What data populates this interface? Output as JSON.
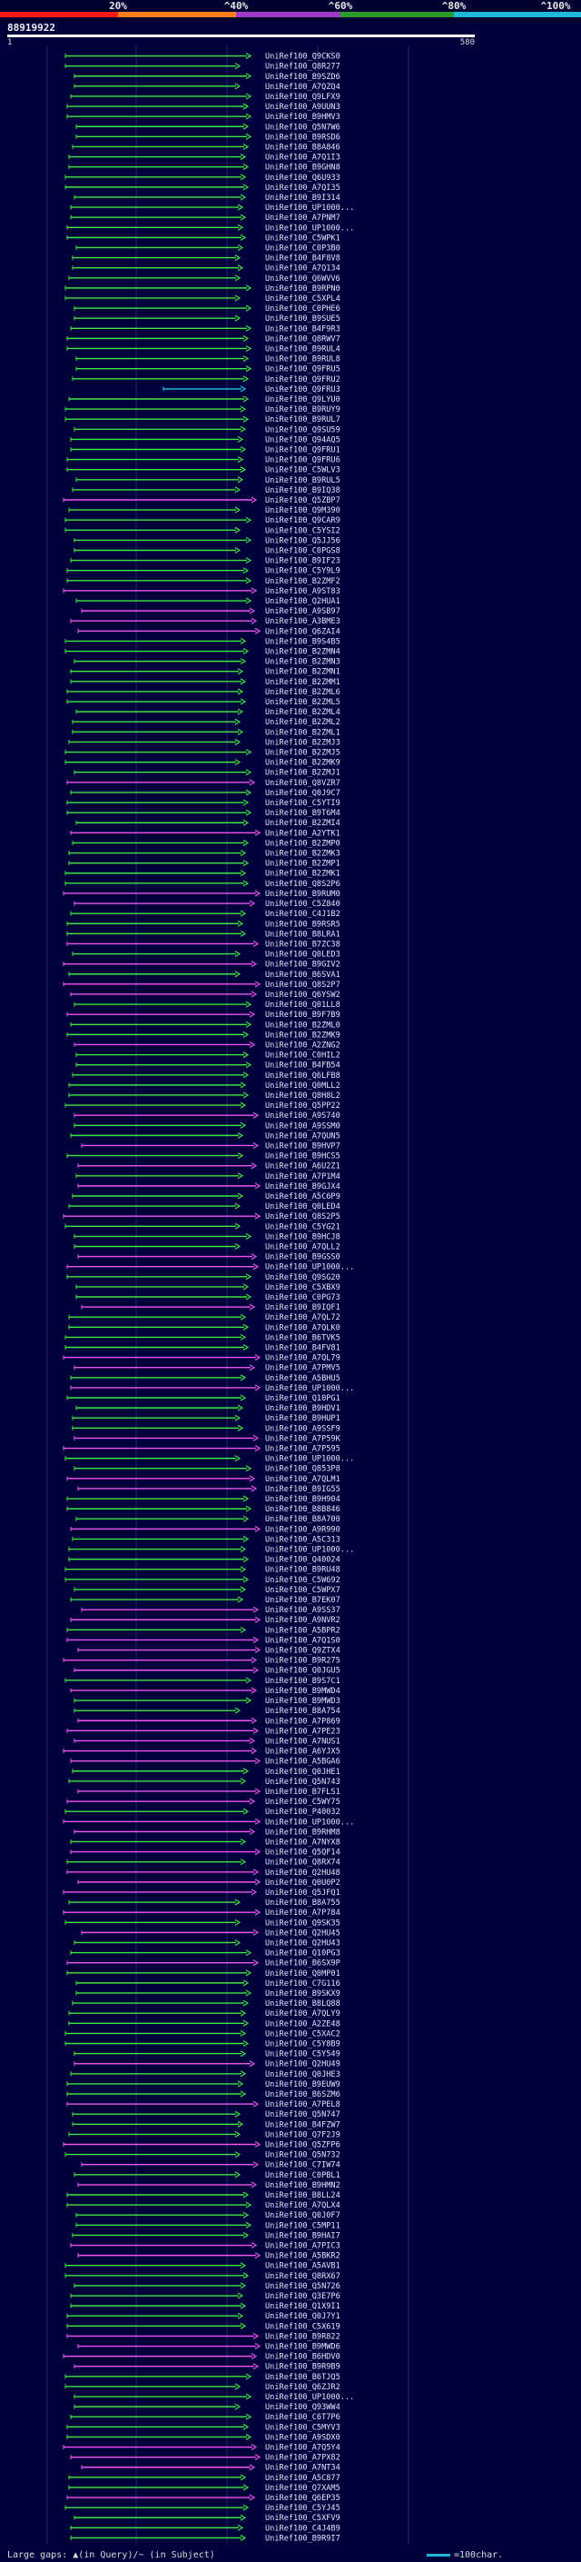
{
  "legend": {
    "stops": [
      "20%",
      "^40%",
      "^60%",
      "^80%",
      "^100%"
    ],
    "colors": {
      "c20": "#ff1a1a",
      "c40": "#ff7f1f",
      "c60": "#9b3cc7",
      "c80": "#2a9b2a",
      "c100": "#1fb8d8"
    }
  },
  "query_id": "88919922",
  "ruler": {
    "start": "1",
    "end": "580"
  },
  "hits": [
    {
      "label": "UniRef100_Q9CKS0",
      "color": "green"
    },
    {
      "label": "UniRef100_Q8R277",
      "color": "green"
    },
    {
      "label": "UniRef100_B9SZD6",
      "color": "green"
    },
    {
      "label": "UniRef100_A7QZQ4",
      "color": "green"
    },
    {
      "label": "UniRef100_Q9LFX9",
      "color": "green"
    },
    {
      "label": "UniRef100_A9UUN3",
      "color": "green"
    },
    {
      "label": "UniRef100_B9HMV3",
      "color": "green"
    },
    {
      "label": "UniRef100_Q5N7W6",
      "color": "green"
    },
    {
      "label": "UniRef100_B9RSD6",
      "color": "green"
    },
    {
      "label": "UniRef100_B8A846",
      "color": "green"
    },
    {
      "label": "UniRef100_A7Q1I3",
      "color": "green"
    },
    {
      "label": "UniRef100_B9GHN8",
      "color": "green"
    },
    {
      "label": "UniRef100_Q6U933",
      "color": "green"
    },
    {
      "label": "UniRef100_A7QI35",
      "color": "green"
    },
    {
      "label": "UniRef100_B9I314",
      "color": "green"
    },
    {
      "label": "UniRef100_UP1000...",
      "color": "green"
    },
    {
      "label": "UniRef100_A7PNM7",
      "color": "green"
    },
    {
      "label": "UniRef100_UP1000...",
      "color": "green"
    },
    {
      "label": "UniRef100_C5WPK1",
      "color": "green"
    },
    {
      "label": "UniRef100_C0P3B0",
      "color": "green"
    },
    {
      "label": "UniRef100_B4F8V8",
      "color": "green"
    },
    {
      "label": "UniRef100_A7Q134",
      "color": "green"
    },
    {
      "label": "UniRef100_Q6WVV6",
      "color": "green"
    },
    {
      "label": "UniRef100_B9RPN0",
      "color": "green"
    },
    {
      "label": "UniRef100_C5XPL4",
      "color": "green"
    },
    {
      "label": "UniRef100_C0PHE6",
      "color": "green"
    },
    {
      "label": "UniRef100_B9SUE5",
      "color": "green"
    },
    {
      "label": "UniRef100_B4F9R3",
      "color": "green"
    },
    {
      "label": "UniRef100_Q8RWV7",
      "color": "green"
    },
    {
      "label": "UniRef100_B9RUL4",
      "color": "green"
    },
    {
      "label": "UniRef100_B9RUL8",
      "color": "green"
    },
    {
      "label": "UniRef100_Q9FRU5",
      "color": "green"
    },
    {
      "label": "UniRef100_Q9FRU2",
      "color": "green"
    },
    {
      "label": "UniRef100_Q9FRU3",
      "color": "cyan"
    },
    {
      "label": "UniRef100_Q9LYU0",
      "color": "green"
    },
    {
      "label": "UniRef100_B9RUY9",
      "color": "green"
    },
    {
      "label": "UniRef100_B9RUL7",
      "color": "green"
    },
    {
      "label": "UniRef100_Q9SU59",
      "color": "green"
    },
    {
      "label": "UniRef100_Q94AQ5",
      "color": "green"
    },
    {
      "label": "UniRef100_Q9FRU1",
      "color": "green"
    },
    {
      "label": "UniRef100_Q9FRU6",
      "color": "green"
    },
    {
      "label": "UniRef100_C5WLV3",
      "color": "green"
    },
    {
      "label": "UniRef100_B9RUL5",
      "color": "green"
    },
    {
      "label": "UniRef100_B9IQ38",
      "color": "green"
    },
    {
      "label": "UniRef100_Q5ZBP7",
      "color": "magenta"
    },
    {
      "label": "UniRef100_Q9M390",
      "color": "green"
    },
    {
      "label": "UniRef100_Q9CAR9",
      "color": "green"
    },
    {
      "label": "UniRef100_C5YSI2",
      "color": "green"
    },
    {
      "label": "UniRef100_Q5JJ56",
      "color": "green"
    },
    {
      "label": "UniRef100_C0PGS8",
      "color": "green"
    },
    {
      "label": "UniRef100_B9IF23",
      "color": "green"
    },
    {
      "label": "UniRef100_C5Y9L9",
      "color": "green"
    },
    {
      "label": "UniRef100_B2ZMF2",
      "color": "green"
    },
    {
      "label": "UniRef100_A9ST83",
      "color": "magenta"
    },
    {
      "label": "UniRef100_Q2HUA1",
      "color": "green"
    },
    {
      "label": "UniRef100_A9SB97",
      "color": "magenta"
    },
    {
      "label": "UniRef100_A3BME3",
      "color": "magenta"
    },
    {
      "label": "UniRef100_Q6ZAI4",
      "color": "magenta"
    },
    {
      "label": "UniRef100_B9S4B5",
      "color": "green"
    },
    {
      "label": "UniRef100_B2ZMN4",
      "color": "green"
    },
    {
      "label": "UniRef100_B2ZMN3",
      "color": "green"
    },
    {
      "label": "UniRef100_B2ZMN1",
      "color": "green"
    },
    {
      "label": "UniRef100_B2ZMM1",
      "color": "green"
    },
    {
      "label": "UniRef100_B2ZML6",
      "color": "green"
    },
    {
      "label": "UniRef100_B2ZML5",
      "color": "green"
    },
    {
      "label": "UniRef100_B2ZML4",
      "color": "green"
    },
    {
      "label": "UniRef100_B2ZML2",
      "color": "green"
    },
    {
      "label": "UniRef100_B2ZML1",
      "color": "green"
    },
    {
      "label": "UniRef100_B2ZMJ3",
      "color": "green"
    },
    {
      "label": "UniRef100_B2ZMJ5",
      "color": "green"
    },
    {
      "label": "UniRef100_B2ZMK9",
      "color": "green"
    },
    {
      "label": "UniRef100_B2ZMJ1",
      "color": "green"
    },
    {
      "label": "UniRef100_Q8VZR7",
      "color": "magenta"
    },
    {
      "label": "UniRef100_Q0J9C7",
      "color": "green"
    },
    {
      "label": "UniRef100_C5YTI9",
      "color": "green"
    },
    {
      "label": "UniRef100_B9T6M4",
      "color": "green"
    },
    {
      "label": "UniRef100_B2ZMI4",
      "color": "green"
    },
    {
      "label": "UniRef100_A2YTK1",
      "color": "magenta"
    },
    {
      "label": "UniRef100_B2ZMP0",
      "color": "green"
    },
    {
      "label": "UniRef100_B2ZMK3",
      "color": "green"
    },
    {
      "label": "UniRef100_B2ZMP1",
      "color": "green"
    },
    {
      "label": "UniRef100_B2ZMK1",
      "color": "green"
    },
    {
      "label": "UniRef100_Q8S2P6",
      "color": "green"
    },
    {
      "label": "UniRef100_B9RUM0",
      "color": "magenta"
    },
    {
      "label": "UniRef100_C5Z840",
      "color": "magenta"
    },
    {
      "label": "UniRef100_C4J1B2",
      "color": "green"
    },
    {
      "label": "UniRef100_B9RSR5",
      "color": "green"
    },
    {
      "label": "UniRef100_B8LRA1",
      "color": "green"
    },
    {
      "label": "UniRef100_B7ZC38",
      "color": "magenta"
    },
    {
      "label": "UniRef100_Q0LED3",
      "color": "green"
    },
    {
      "label": "UniRef100_B9GIV2",
      "color": "magenta"
    },
    {
      "label": "UniRef100_B6SVA1",
      "color": "green"
    },
    {
      "label": "UniRef100_Q8S2P7",
      "color": "magenta"
    },
    {
      "label": "UniRef100_Q6YSW2",
      "color": "magenta"
    },
    {
      "label": "UniRef100_Q01LL8",
      "color": "green"
    },
    {
      "label": "UniRef100_B9F7B9",
      "color": "magenta"
    },
    {
      "label": "UniRef100_B2ZML0",
      "color": "green"
    },
    {
      "label": "UniRef100_B2ZMK9",
      "color": "green"
    },
    {
      "label": "UniRef100_A2ZNG2",
      "color": "magenta"
    },
    {
      "label": "UniRef100_C0HIL2",
      "color": "green"
    },
    {
      "label": "UniRef100_B4FB54",
      "color": "green"
    },
    {
      "label": "UniRef100_Q6LFB8",
      "color": "green"
    },
    {
      "label": "UniRef100_Q0MLL2",
      "color": "green"
    },
    {
      "label": "UniRef100_Q8H8L2",
      "color": "green"
    },
    {
      "label": "UniRef100_Q5PP22",
      "color": "green"
    },
    {
      "label": "UniRef100_A9S740",
      "color": "magenta"
    },
    {
      "label": "UniRef100_A9SSM0",
      "color": "green"
    },
    {
      "label": "UniRef100_A7QUN5",
      "color": "green"
    },
    {
      "label": "UniRef100_B9HVP7",
      "color": "magenta"
    },
    {
      "label": "UniRef100_B9HCS5",
      "color": "green"
    },
    {
      "label": "UniRef100_A6U2Z1",
      "color": "magenta"
    },
    {
      "label": "UniRef100_A7P1M4",
      "color": "green"
    },
    {
      "label": "UniRef100_B9GJX4",
      "color": "magenta"
    },
    {
      "label": "UniRef100_A5C6P9",
      "color": "green"
    },
    {
      "label": "UniRef100_Q0LED4",
      "color": "green"
    },
    {
      "label": "UniRef100_Q8S2P5",
      "color": "magenta"
    },
    {
      "label": "UniRef100_C5YG21",
      "color": "green"
    },
    {
      "label": "UniRef100_B9HCJ8",
      "color": "green"
    },
    {
      "label": "UniRef100_A7QLL2",
      "color": "green"
    },
    {
      "label": "UniRef100_B9GSS0",
      "color": "magenta"
    },
    {
      "label": "UniRef100_UP1000...",
      "color": "magenta"
    },
    {
      "label": "UniRef100_Q9SG20",
      "color": "green"
    },
    {
      "label": "UniRef100_C5XBX9",
      "color": "green"
    },
    {
      "label": "UniRef100_C0PG73",
      "color": "green"
    },
    {
      "label": "UniRef100_B9IQF1",
      "color": "magenta"
    },
    {
      "label": "UniRef100_A7QL72",
      "color": "green"
    },
    {
      "label": "UniRef100_A7QLK0",
      "color": "green"
    },
    {
      "label": "UniRef100_B6TVK5",
      "color": "green"
    },
    {
      "label": "UniRef100_B4FV81",
      "color": "green"
    },
    {
      "label": "UniRef100_A7QL79",
      "color": "magenta"
    },
    {
      "label": "UniRef100_A7PMV5",
      "color": "magenta"
    },
    {
      "label": "UniRef100_A5BHU5",
      "color": "green"
    },
    {
      "label": "UniRef100_UP1000...",
      "color": "magenta"
    },
    {
      "label": "UniRef100_Q10PG1",
      "color": "green"
    },
    {
      "label": "UniRef100_B9HDV1",
      "color": "green"
    },
    {
      "label": "UniRef100_B9HUP1",
      "color": "green"
    },
    {
      "label": "UniRef100_A9SSF9",
      "color": "green"
    },
    {
      "label": "UniRef100_A7P59K",
      "color": "magenta"
    },
    {
      "label": "UniRef100_A7P595",
      "color": "magenta"
    },
    {
      "label": "UniRef100_UP1000...",
      "color": "green"
    },
    {
      "label": "UniRef100_Q853P8",
      "color": "green"
    },
    {
      "label": "UniRef100_A7QLM1",
      "color": "magenta"
    },
    {
      "label": "UniRef100_B9IG55",
      "color": "magenta"
    },
    {
      "label": "UniRef100_B9H904",
      "color": "green"
    },
    {
      "label": "UniRef100_B8B846",
      "color": "green"
    },
    {
      "label": "UniRef100_B8A700",
      "color": "green"
    },
    {
      "label": "UniRef100_A9R990",
      "color": "magenta"
    },
    {
      "label": "UniRef100_A5C313",
      "color": "green"
    },
    {
      "label": "UniRef100_UP1000...",
      "color": "green"
    },
    {
      "label": "UniRef100_Q40024",
      "color": "green"
    },
    {
      "label": "UniRef100_B9RU48",
      "color": "green"
    },
    {
      "label": "UniRef100_C5W692",
      "color": "green"
    },
    {
      "label": "UniRef100_C5WPX7",
      "color": "green"
    },
    {
      "label": "UniRef100_B7EK07",
      "color": "green"
    },
    {
      "label": "UniRef100_A9SS37",
      "color": "magenta"
    },
    {
      "label": "UniRef100_A9NVR2",
      "color": "magenta"
    },
    {
      "label": "UniRef100_A5BPR2",
      "color": "green"
    },
    {
      "label": "UniRef100_A7Q1S0",
      "color": "magenta"
    },
    {
      "label": "UniRef100_Q9ZTX4",
      "color": "magenta"
    },
    {
      "label": "UniRef100_B9R275",
      "color": "magenta"
    },
    {
      "label": "UniRef100_Q0JGU5",
      "color": "magenta"
    },
    {
      "label": "UniRef100_B9S7C1",
      "color": "green"
    },
    {
      "label": "UniRef100_B9MWD4",
      "color": "magenta"
    },
    {
      "label": "UniRef100_B9MWD3",
      "color": "green"
    },
    {
      "label": "UniRef100_B8A754",
      "color": "green"
    },
    {
      "label": "UniRef100_A7P869",
      "color": "magenta"
    },
    {
      "label": "UniRef100_A7PE23",
      "color": "magenta"
    },
    {
      "label": "UniRef100_A7NUS1",
      "color": "magenta"
    },
    {
      "label": "UniRef100_A6YJX5",
      "color": "magenta"
    },
    {
      "label": "UniRef100_A5BGA6",
      "color": "magenta"
    },
    {
      "label": "UniRef100_Q0JHE1",
      "color": "green"
    },
    {
      "label": "UniRef100_Q5N743",
      "color": "green"
    },
    {
      "label": "UniRef100_B7FLS1",
      "color": "magenta"
    },
    {
      "label": "UniRef100_C5WY75",
      "color": "magenta"
    },
    {
      "label": "UniRef100_P40032",
      "color": "green"
    },
    {
      "label": "UniRef100_UP1000...",
      "color": "magenta"
    },
    {
      "label": "UniRef100_B9RHM8",
      "color": "magenta"
    },
    {
      "label": "UniRef100_A7NYX8",
      "color": "green"
    },
    {
      "label": "UniRef100_Q5QF14",
      "color": "magenta"
    },
    {
      "label": "UniRef100_Q8RX74",
      "color": "green"
    },
    {
      "label": "UniRef100_Q2HU48",
      "color": "magenta"
    },
    {
      "label": "UniRef100_Q0U0P2",
      "color": "magenta"
    },
    {
      "label": "UniRef100_Q5JFQ1",
      "color": "magenta"
    },
    {
      "label": "UniRef100_B8A755",
      "color": "green"
    },
    {
      "label": "UniRef100_A7P784",
      "color": "magenta"
    },
    {
      "label": "UniRef100_Q9SK35",
      "color": "green"
    },
    {
      "label": "UniRef100_Q2HU45",
      "color": "magenta"
    },
    {
      "label": "UniRef100_Q2HU43",
      "color": "green"
    },
    {
      "label": "UniRef100_Q10PG3",
      "color": "green"
    },
    {
      "label": "UniRef100_B6SX9P",
      "color": "magenta"
    },
    {
      "label": "UniRef100_Q0MP01",
      "color": "green"
    },
    {
      "label": "UniRef100_C7G116",
      "color": "green"
    },
    {
      "label": "UniRef100_B9SKX9",
      "color": "green"
    },
    {
      "label": "UniRef100_B8LQ88",
      "color": "green"
    },
    {
      "label": "UniRef100_A7QLY9",
      "color": "green"
    },
    {
      "label": "UniRef100_A2ZE48",
      "color": "green"
    },
    {
      "label": "UniRef100_C5XAC2",
      "color": "green"
    },
    {
      "label": "UniRef100_C5Y8B9",
      "color": "green"
    },
    {
      "label": "UniRef100_C5Y549",
      "color": "green"
    },
    {
      "label": "UniRef100_Q2HU49",
      "color": "magenta"
    },
    {
      "label": "UniRef100_Q0JHE3",
      "color": "green"
    },
    {
      "label": "UniRef100_B9EUW9",
      "color": "green"
    },
    {
      "label": "UniRef100_B6SZM6",
      "color": "green"
    },
    {
      "label": "UniRef100_A7PEL8",
      "color": "magenta"
    },
    {
      "label": "UniRef100_Q5N747",
      "color": "green"
    },
    {
      "label": "UniRef100_B4FZW7",
      "color": "green"
    },
    {
      "label": "UniRef100_Q7F2J9",
      "color": "green"
    },
    {
      "label": "UniRef100_Q5ZFP6",
      "color": "magenta"
    },
    {
      "label": "UniRef100_Q5N732",
      "color": "green"
    },
    {
      "label": "UniRef100_C7IW74",
      "color": "magenta"
    },
    {
      "label": "UniRef100_C0PBL1",
      "color": "green"
    },
    {
      "label": "UniRef100_B9HMN2",
      "color": "magenta"
    },
    {
      "label": "UniRef100_B8LL24",
      "color": "green"
    },
    {
      "label": "UniRef100_A7QLX4",
      "color": "green"
    },
    {
      "label": "UniRef100_Q0J0F7",
      "color": "green"
    },
    {
      "label": "UniRef100_C5MP11",
      "color": "green"
    },
    {
      "label": "UniRef100_B9HAI7",
      "color": "green"
    },
    {
      "label": "UniRef100_A7PIC3",
      "color": "magenta"
    },
    {
      "label": "UniRef100_A5BKR2",
      "color": "magenta"
    },
    {
      "label": "UniRef100_A5AVB1",
      "color": "green"
    },
    {
      "label": "UniRef100_Q8RX67",
      "color": "green"
    },
    {
      "label": "UniRef100_Q5N726",
      "color": "green"
    },
    {
      "label": "UniRef100_Q3E7P6",
      "color": "green"
    },
    {
      "label": "UniRef100_Q1X9I1",
      "color": "green"
    },
    {
      "label": "UniRef100_Q0J7Y1",
      "color": "green"
    },
    {
      "label": "UniRef100_C5X619",
      "color": "green"
    },
    {
      "label": "UniRef100_B9R822",
      "color": "magenta"
    },
    {
      "label": "UniRef100_B9MWD6",
      "color": "magenta"
    },
    {
      "label": "UniRef100_B6HDV0",
      "color": "magenta"
    },
    {
      "label": "UniRef100_B9R9B9",
      "color": "magenta"
    },
    {
      "label": "UniRef100_B6TJQ5",
      "color": "green"
    },
    {
      "label": "UniRef100_Q6ZJR2",
      "color": "green"
    },
    {
      "label": "UniRef100_UP1000...",
      "color": "green"
    },
    {
      "label": "UniRef100_Q93WW4",
      "color": "green"
    },
    {
      "label": "UniRef100_C6T7P6",
      "color": "green"
    },
    {
      "label": "UniRef100_C5MYV3",
      "color": "green"
    },
    {
      "label": "UniRef100_A9SDX0",
      "color": "green"
    },
    {
      "label": "UniRef100_A7Q5Y4",
      "color": "magenta"
    },
    {
      "label": "UniRef100_A7PX82",
      "color": "magenta"
    },
    {
      "label": "UniRef100_A7NT34",
      "color": "magenta"
    },
    {
      "label": "UniRef100_A5C877",
      "color": "green"
    },
    {
      "label": "UniRef100_Q7XAM5",
      "color": "green"
    },
    {
      "label": "UniRef100_Q6EP35",
      "color": "magenta"
    },
    {
      "label": "UniRef100_C5YJ45",
      "color": "green"
    },
    {
      "label": "UniRef100_C5XFV9",
      "color": "green"
    },
    {
      "label": "UniRef100_C4J4B9",
      "color": "green"
    },
    {
      "label": "UniRef100_B9R9I7",
      "color": "green"
    }
  ],
  "footer": {
    "gaps_label": "Large gaps: ▲(in Query)/~ (in Subject)",
    "scale_label": "=100char."
  }
}
